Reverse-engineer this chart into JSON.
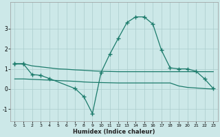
{
  "xlabel": "Humidex (Indice chaleur)",
  "background_color": "#cce8e8",
  "grid_color": "#aacccc",
  "line_color": "#1a7a6a",
  "xlim": [
    -0.5,
    23.5
  ],
  "ylim": [
    -1.6,
    4.3
  ],
  "yticks": [
    -1,
    0,
    1,
    2,
    3
  ],
  "xticks": [
    0,
    1,
    2,
    3,
    4,
    5,
    6,
    7,
    8,
    9,
    10,
    11,
    12,
    13,
    14,
    15,
    16,
    17,
    18,
    19,
    20,
    21,
    22,
    23
  ],
  "line1_x": [
    0,
    1,
    2,
    3,
    4,
    5,
    6,
    7,
    8,
    9,
    10,
    11,
    12,
    13,
    14,
    15,
    16,
    17,
    18,
    19,
    20,
    21,
    22,
    23
  ],
  "line1_y": [
    1.25,
    1.25,
    1.15,
    1.1,
    1.05,
    1.0,
    0.98,
    0.95,
    0.93,
    0.9,
    0.88,
    0.87,
    0.86,
    0.86,
    0.86,
    0.86,
    0.86,
    0.86,
    0.86,
    0.86,
    0.86,
    0.86,
    0.86,
    0.86
  ],
  "line2_x": [
    0,
    1,
    2,
    3,
    4,
    5,
    6,
    7,
    8,
    9,
    10,
    11,
    12,
    13,
    14,
    15,
    16,
    17,
    18,
    19,
    20,
    21,
    22,
    23
  ],
  "line2_y": [
    0.5,
    0.5,
    0.48,
    0.46,
    0.44,
    0.42,
    0.4,
    0.38,
    0.35,
    0.33,
    0.32,
    0.31,
    0.3,
    0.3,
    0.3,
    0.3,
    0.3,
    0.3,
    0.3,
    0.15,
    0.08,
    0.05,
    0.02,
    0.0
  ],
  "curve_x": [
    0,
    1,
    2,
    3,
    4,
    7,
    8,
    9,
    10,
    11,
    12,
    13,
    14,
    15,
    16,
    17,
    18,
    19,
    20,
    21,
    22,
    23
  ],
  "curve_y": [
    1.25,
    1.25,
    0.72,
    0.68,
    0.52,
    0.02,
    -0.38,
    -1.22,
    0.82,
    1.72,
    2.52,
    3.3,
    3.58,
    3.58,
    3.22,
    1.92,
    1.05,
    1.0,
    1.0,
    0.88,
    0.5,
    0.02
  ]
}
